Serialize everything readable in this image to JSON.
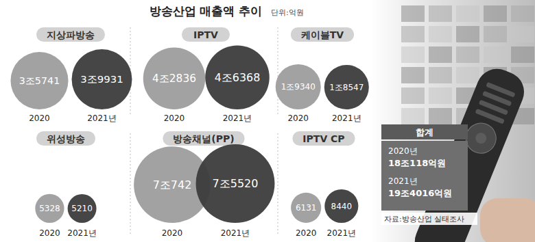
{
  "title": "방송산업 매출액 추이",
  "unit": "단위:억원",
  "chart_data": [
    {
      "type": "bubble",
      "title": "지상파방송",
      "categories": [
        "2020",
        "2021년"
      ],
      "values": [
        35741,
        39931
      ],
      "value_labels": [
        "3조5741",
        "3조9931"
      ],
      "colors": [
        "#a2a2a2",
        "#3c3c3c"
      ],
      "data_labels": true
    },
    {
      "type": "bubble",
      "title": "IPTV",
      "categories": [
        "2020",
        "2021년"
      ],
      "values": [
        42836,
        46368
      ],
      "value_labels": [
        "4조2836",
        "4조6368"
      ],
      "colors": [
        "#a2a2a2",
        "#3c3c3c"
      ],
      "data_labels": true
    },
    {
      "type": "bubble",
      "title": "케이블TV",
      "categories": [
        "2020",
        "2021년"
      ],
      "values": [
        19340,
        18547
      ],
      "value_labels": [
        "1조9340",
        "1조8547"
      ],
      "colors": [
        "#a2a2a2",
        "#3c3c3c"
      ],
      "data_labels": true
    },
    {
      "type": "bubble",
      "title": "위성방송",
      "categories": [
        "2020",
        "2021년"
      ],
      "values": [
        5328,
        5210
      ],
      "value_labels": [
        "5328",
        "5210"
      ],
      "colors": [
        "#a2a2a2",
        "#3c3c3c"
      ],
      "data_labels": true
    },
    {
      "type": "bubble",
      "title": "방송채널(PP)",
      "categories": [
        "2020",
        "2021년"
      ],
      "values": [
        70742,
        75520
      ],
      "value_labels": [
        "7조742",
        "7조5520"
      ],
      "colors": [
        "#a2a2a2",
        "#3c3c3c"
      ],
      "data_labels": true
    },
    {
      "type": "bubble",
      "title": "IPTV CP",
      "categories": [
        "2020",
        "2021년"
      ],
      "values": [
        6131,
        8440
      ],
      "value_labels": [
        "6131",
        "8440"
      ],
      "colors": [
        "#a2a2a2",
        "#3c3c3c"
      ],
      "data_labels": true
    }
  ],
  "total": {
    "title": "합계",
    "items": [
      {
        "label": "2020년",
        "value": "18조118억원"
      },
      {
        "label": "2021년",
        "value": "19조4016억원"
      }
    ]
  },
  "source": "자료:방송산업 실태조사"
}
